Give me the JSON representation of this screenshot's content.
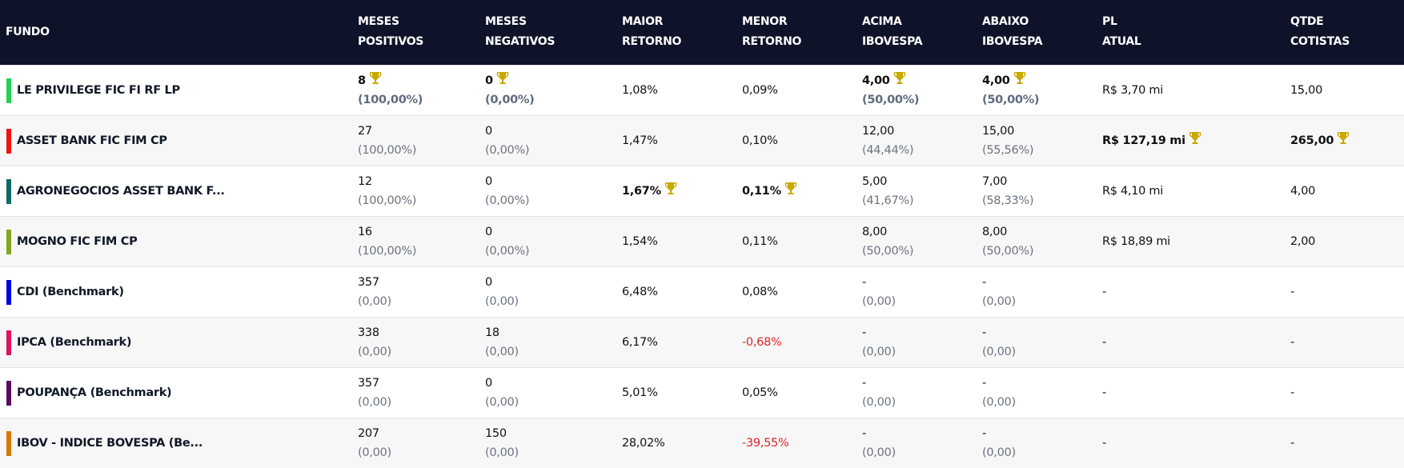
{
  "colors": {
    "header_bg": "#0f1329",
    "trophy": "#c9a800",
    "negative": "#dc2626"
  },
  "header": {
    "columns": [
      [
        "FUNDO"
      ],
      [
        "MESES",
        "POSITIVOS"
      ],
      [
        "MESES",
        "NEGATIVOS"
      ],
      [
        "MAIOR",
        "RETORNO"
      ],
      [
        "MENOR",
        "RETORNO"
      ],
      [
        "ACIMA",
        "IBOVESPA"
      ],
      [
        "ABAIXO",
        "IBOVESPA"
      ],
      [
        "PL",
        "ATUAL"
      ],
      [
        "QTDE",
        "COTISTAS"
      ]
    ]
  },
  "rows": [
    {
      "fund": "LE PRIVILEGE FIC FI RF LP",
      "color": "#22d34f",
      "cells": [
        {
          "main": "8",
          "sub": "(100,00%)",
          "bold": true,
          "trophy": true
        },
        {
          "main": "0",
          "sub": "(0,00%)",
          "bold": true,
          "trophy": true
        },
        {
          "main": "1,08%"
        },
        {
          "main": "0,09%"
        },
        {
          "main": "4,00",
          "sub": "(50,00%)",
          "bold": true,
          "trophy": true
        },
        {
          "main": "4,00",
          "sub": "(50,00%)",
          "bold": true,
          "trophy": true
        },
        {
          "main": "R$ 3,70 mi"
        },
        {
          "main": "15,00"
        }
      ]
    },
    {
      "fund": "ASSET BANK FIC FIM CP",
      "color": "#ff0d0d",
      "cells": [
        {
          "main": "27",
          "sub": "(100,00%)"
        },
        {
          "main": "0",
          "sub": "(0,00%)"
        },
        {
          "main": "1,47%"
        },
        {
          "main": "0,10%"
        },
        {
          "main": "12,00",
          "sub": "(44,44%)"
        },
        {
          "main": "15,00",
          "sub": "(55,56%)"
        },
        {
          "main": "R$ 127,19 mi",
          "bold": true,
          "trophy": true
        },
        {
          "main": "265,00",
          "bold": true,
          "trophy": true
        }
      ]
    },
    {
      "fund": "AGRONEGOCIOS ASSET BANK F...",
      "color": "#0b6b66",
      "cells": [
        {
          "main": "12",
          "sub": "(100,00%)"
        },
        {
          "main": "0",
          "sub": "(0,00%)"
        },
        {
          "main": "1,67%",
          "bold": true,
          "trophy": true
        },
        {
          "main": "0,11%",
          "bold": true,
          "trophy": true
        },
        {
          "main": "5,00",
          "sub": "(41,67%)"
        },
        {
          "main": "7,00",
          "sub": "(58,33%)"
        },
        {
          "main": "R$ 4,10 mi"
        },
        {
          "main": "4,00"
        }
      ]
    },
    {
      "fund": "MOGNO FIC FIM CP",
      "color": "#7fa81d",
      "cells": [
        {
          "main": "16",
          "sub": "(100,00%)"
        },
        {
          "main": "0",
          "sub": "(0,00%)"
        },
        {
          "main": "1,54%"
        },
        {
          "main": "0,11%"
        },
        {
          "main": "8,00",
          "sub": "(50,00%)"
        },
        {
          "main": "8,00",
          "sub": "(50,00%)"
        },
        {
          "main": "R$ 18,89 mi"
        },
        {
          "main": "2,00"
        }
      ]
    },
    {
      "fund": "CDI (Benchmark)",
      "color": "#0000e6",
      "cells": [
        {
          "main": "357",
          "sub": "(0,00)"
        },
        {
          "main": "0",
          "sub": "(0,00)"
        },
        {
          "main": "6,48%"
        },
        {
          "main": "0,08%"
        },
        {
          "main": "-",
          "sub": "(0,00)"
        },
        {
          "main": "-",
          "sub": "(0,00)"
        },
        {
          "main": "-"
        },
        {
          "main": "-"
        }
      ]
    },
    {
      "fund": "IPCA (Benchmark)",
      "color": "#e0115f",
      "cells": [
        {
          "main": "338",
          "sub": "(0,00)"
        },
        {
          "main": "18",
          "sub": "(0,00)"
        },
        {
          "main": "6,17%"
        },
        {
          "main": "-0,68%",
          "negative": true
        },
        {
          "main": "-",
          "sub": "(0,00)"
        },
        {
          "main": "-",
          "sub": "(0,00)"
        },
        {
          "main": "-"
        },
        {
          "main": "-"
        }
      ]
    },
    {
      "fund": "POUPANÇA (Benchmark)",
      "color": "#5c0a5c",
      "cells": [
        {
          "main": "357",
          "sub": "(0,00)"
        },
        {
          "main": "0",
          "sub": "(0,00)"
        },
        {
          "main": "5,01%"
        },
        {
          "main": "0,05%"
        },
        {
          "main": "-",
          "sub": "(0,00)"
        },
        {
          "main": "-",
          "sub": "(0,00)"
        },
        {
          "main": "-"
        },
        {
          "main": "-"
        }
      ]
    },
    {
      "fund": "IBOV - INDICE BOVESPA (Be...",
      "color": "#d97706",
      "cells": [
        {
          "main": "207",
          "sub": "(0,00)"
        },
        {
          "main": "150",
          "sub": "(0,00)"
        },
        {
          "main": "28,02%"
        },
        {
          "main": "-39,55%",
          "negative": true
        },
        {
          "main": "-",
          "sub": "(0,00)"
        },
        {
          "main": "-",
          "sub": "(0,00)"
        },
        {
          "main": "-"
        },
        {
          "main": "-"
        }
      ]
    }
  ]
}
